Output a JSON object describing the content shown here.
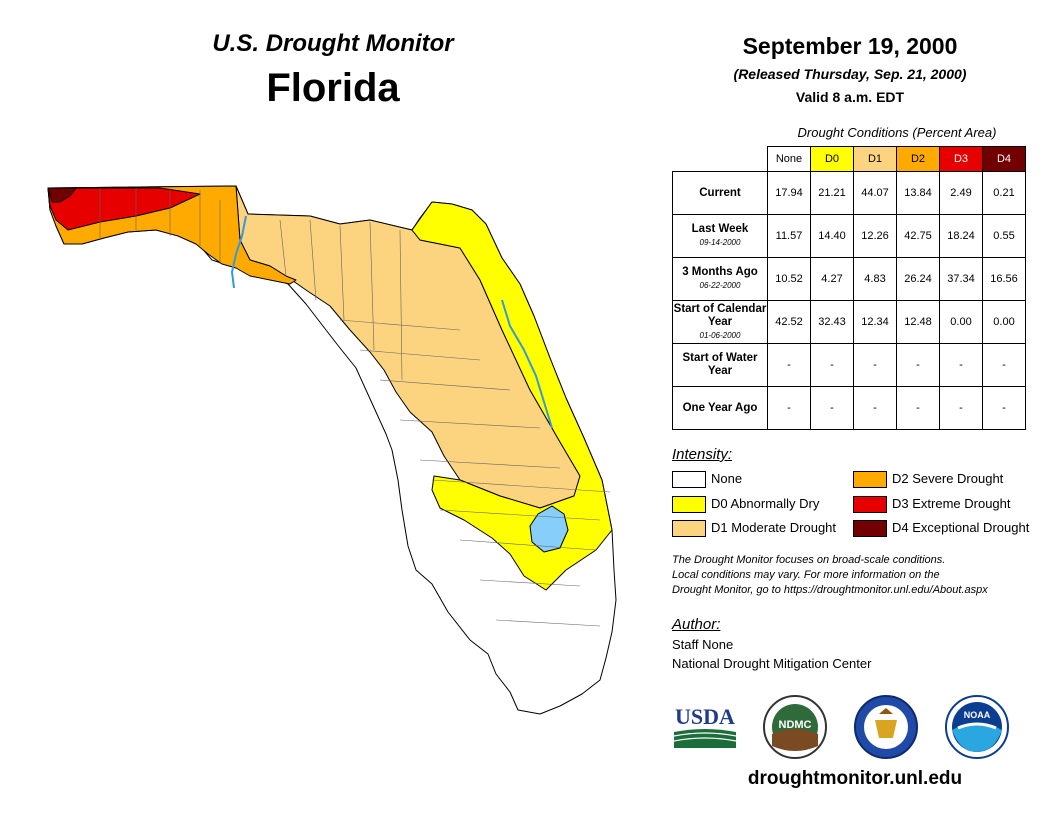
{
  "header": {
    "title": "U.S. Drought Monitor",
    "state": "Florida",
    "date": "September 19, 2000",
    "released": "(Released Thursday, Sep. 21, 2000)",
    "valid": "Valid 8 a.m. EDT"
  },
  "table": {
    "caption": "Drought Conditions (Percent Area)",
    "columns": [
      "None",
      "D0",
      "D1",
      "D2",
      "D3",
      "D4"
    ],
    "column_colors": [
      "#ffffff",
      "#ffff00",
      "#fcd37f",
      "#ffaa00",
      "#e60000",
      "#730000"
    ],
    "rows": [
      {
        "label": "Current",
        "sublabel": "",
        "values": [
          "17.94",
          "21.21",
          "44.07",
          "13.84",
          "2.49",
          "0.21"
        ]
      },
      {
        "label": "Last Week",
        "sublabel": "09-14-2000",
        "values": [
          "11.57",
          "14.40",
          "12.26",
          "42.75",
          "18.24",
          "0.55"
        ]
      },
      {
        "label": "3 Months Ago",
        "sublabel": "06-22-2000",
        "values": [
          "10.52",
          "4.27",
          "4.83",
          "26.24",
          "37.34",
          "16.56"
        ]
      },
      {
        "label": "Start of Calendar Year",
        "sublabel": "01-06-2000",
        "values": [
          "42.52",
          "32.43",
          "12.34",
          "12.48",
          "0.00",
          "0.00"
        ]
      },
      {
        "label": "Start of Water Year",
        "sublabel": "",
        "values": [
          "-",
          "-",
          "-",
          "-",
          "-",
          "-"
        ]
      },
      {
        "label": "One Year Ago",
        "sublabel": "",
        "values": [
          "-",
          "-",
          "-",
          "-",
          "-",
          "-"
        ]
      }
    ]
  },
  "legend": {
    "title": "Intensity:",
    "items": [
      {
        "label": "None",
        "color": "#ffffff"
      },
      {
        "label": "D0 Abnormally Dry",
        "color": "#ffff00"
      },
      {
        "label": "D1 Moderate Drought",
        "color": "#fcd37f"
      },
      {
        "label": "D2 Severe Drought",
        "color": "#ffaa00"
      },
      {
        "label": "D3 Extreme Drought",
        "color": "#e60000"
      },
      {
        "label": "D4 Exceptional Drought",
        "color": "#730000"
      }
    ]
  },
  "note": {
    "line1": "The Drought Monitor focuses on broad-scale conditions.",
    "line2": "Local conditions may vary. For more information on the",
    "line3": "Drought Monitor, go to https://droughtmonitor.unl.edu/About.aspx"
  },
  "author": {
    "title": "Author:",
    "name": "Staff None",
    "org": "National Drought Mitigation Center"
  },
  "logos": {
    "usda": "USDA",
    "ndmc": "NDMC",
    "noaa": "NOAA"
  },
  "footer": {
    "url": "droughtmonitor.unl.edu"
  },
  "map_colors": {
    "water": "#87cefa",
    "river": "#3399dd"
  }
}
